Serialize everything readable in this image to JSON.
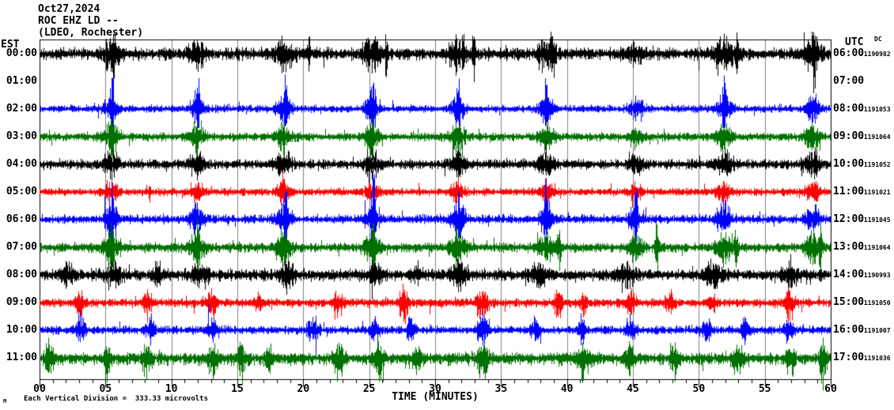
{
  "header": {
    "date": "Oct27,2024",
    "station": "ROC EHZ LD --",
    "location": "(LDEO, Rochester)"
  },
  "left_axis": {
    "label": "EST"
  },
  "right_axis": {
    "label": "UTC",
    "dc_label": "DC"
  },
  "x_axis": {
    "title": "TIME (MINUTES)",
    "tick_labels": [
      "00",
      "05",
      "10",
      "15",
      "20",
      "25",
      "30",
      "35",
      "40",
      "45",
      "50",
      "55",
      "60"
    ],
    "minor_tick_minutes": 1,
    "major_tick_minutes": 5
  },
  "footer": {
    "watermark": "M",
    "note": "Each Vertical Division =  333.33 microvolts"
  },
  "colors": {
    "black": "#000000",
    "red": "#ff0000",
    "blue": "#0000ff",
    "green": "#007000",
    "grid": "#808080",
    "frame": "#000000",
    "background": "#ffffff"
  },
  "chart_data": {
    "type": "line",
    "subtype": "helicorder-seismogram",
    "title": "ROC EHZ LD -- (LDEO, Rochester) Oct27,2024",
    "x_range_minutes": [
      0,
      60
    ],
    "minutes_per_line": 60,
    "vertical_division_microvolts": 333.33,
    "rows": [
      {
        "est": "00:00",
        "utc": "06:00",
        "dc": "-1190982",
        "color": "black",
        "gap": false,
        "seed": 11,
        "base": 6,
        "spike": 2.2,
        "max_up": 56,
        "max_dn": 50,
        "dn_bias": 1.1,
        "up_bias": 1,
        "bursts": [
          [
            5.4,
            22,
            0.7
          ],
          [
            11.9,
            18,
            0.6
          ],
          [
            18.5,
            20,
            0.7
          ],
          [
            25.2,
            20,
            0.7
          ],
          [
            31.7,
            20,
            0.7
          ],
          [
            38.4,
            20,
            0.7
          ],
          [
            45.2,
            16,
            0.6
          ],
          [
            51.9,
            20,
            0.7
          ],
          [
            58.6,
            22,
            0.7
          ],
          [
            5.6,
            40,
            0.12
          ],
          [
            20.4,
            42,
            0.1
          ],
          [
            26.3,
            40,
            0.1
          ],
          [
            32.9,
            40,
            0.1
          ],
          [
            38.9,
            38,
            0.1
          ],
          [
            52.9,
            40,
            0.1
          ],
          [
            58.7,
            45,
            0.12
          ]
        ]
      },
      {
        "est": "01:00",
        "utc": "07:00",
        "dc": "",
        "color": "red",
        "gap": true,
        "seed": 1,
        "base": 0,
        "spike": 1,
        "max_up": 0,
        "max_dn": 0,
        "dn_bias": 1,
        "up_bias": 1,
        "bursts": []
      },
      {
        "est": "02:00",
        "utc": "08:00",
        "dc": "-1191053",
        "color": "blue",
        "gap": false,
        "seed": 22,
        "base": 3.5,
        "spike": 2.2,
        "max_up": 44,
        "max_dn": 24,
        "dn_bias": 1,
        "up_bias": 1.2,
        "bursts": [
          [
            5.4,
            20,
            0.5
          ],
          [
            11.9,
            20,
            0.5
          ],
          [
            18.5,
            20,
            0.5
          ],
          [
            25.2,
            20,
            0.5
          ],
          [
            31.7,
            20,
            0.5
          ],
          [
            38.4,
            20,
            0.5
          ],
          [
            45.2,
            16,
            0.5
          ],
          [
            51.9,
            20,
            0.5
          ],
          [
            58.6,
            20,
            0.5
          ],
          [
            5.5,
            38,
            0.1
          ],
          [
            12.0,
            30,
            0.1
          ],
          [
            18.6,
            34,
            0.1
          ],
          [
            25.3,
            34,
            0.1
          ],
          [
            31.8,
            30,
            0.1
          ],
          [
            38.4,
            30,
            0.1
          ],
          [
            51.9,
            30,
            0.1
          ]
        ]
      },
      {
        "est": "03:00",
        "utc": "09:00",
        "dc": "-1191064",
        "color": "green",
        "gap": false,
        "seed": 33,
        "base": 4,
        "spike": 2,
        "max_up": 26,
        "max_dn": 34,
        "dn_bias": 1.15,
        "up_bias": 1,
        "bursts": [
          [
            5.4,
            18,
            0.55
          ],
          [
            11.9,
            18,
            0.55
          ],
          [
            18.5,
            18,
            0.55
          ],
          [
            25.2,
            18,
            0.55
          ],
          [
            31.7,
            18,
            0.55
          ],
          [
            38.4,
            18,
            0.55
          ],
          [
            45.2,
            14,
            0.5
          ],
          [
            51.9,
            18,
            0.55
          ],
          [
            58.6,
            18,
            0.55
          ],
          [
            5.4,
            28,
            0.12
          ],
          [
            11.9,
            26,
            0.1
          ],
          [
            18.5,
            26,
            0.1
          ],
          [
            25.2,
            28,
            0.12
          ]
        ]
      },
      {
        "est": "04:00",
        "utc": "10:00",
        "dc": "-1191052",
        "color": "black",
        "gap": false,
        "seed": 44,
        "base": 5,
        "spike": 2,
        "max_up": 30,
        "max_dn": 28,
        "dn_bias": 1,
        "up_bias": 1,
        "bursts": [
          [
            5.4,
            17,
            0.6
          ],
          [
            11.9,
            17,
            0.6
          ],
          [
            18.5,
            17,
            0.6
          ],
          [
            25.2,
            17,
            0.6
          ],
          [
            31.7,
            17,
            0.6
          ],
          [
            38.4,
            17,
            0.6
          ],
          [
            45.2,
            14,
            0.5
          ],
          [
            51.9,
            17,
            0.6
          ],
          [
            58.6,
            17,
            0.6
          ]
        ]
      },
      {
        "est": "05:00",
        "utc": "11:00",
        "dc": "-1191021",
        "color": "red",
        "gap": false,
        "seed": 55,
        "base": 4,
        "spike": 2,
        "max_up": 26,
        "max_dn": 26,
        "dn_bias": 1,
        "up_bias": 1,
        "bursts": [
          [
            5.4,
            15,
            0.5
          ],
          [
            11.9,
            15,
            0.5
          ],
          [
            18.5,
            15,
            0.5
          ],
          [
            25.2,
            15,
            0.5
          ],
          [
            31.7,
            15,
            0.5
          ],
          [
            38.4,
            15,
            0.5
          ],
          [
            45.2,
            12,
            0.5
          ],
          [
            51.9,
            15,
            0.5
          ],
          [
            58.6,
            15,
            0.5
          ],
          [
            8.3,
            24,
            0.07
          ]
        ]
      },
      {
        "est": "06:00",
        "utc": "12:00",
        "dc": "-1191045",
        "color": "blue",
        "gap": false,
        "seed": 66,
        "base": 4,
        "spike": 2.2,
        "max_up": 85,
        "max_dn": 28,
        "dn_bias": 1,
        "up_bias": 1.3,
        "bursts": [
          [
            5.4,
            20,
            0.5
          ],
          [
            11.9,
            20,
            0.5
          ],
          [
            18.5,
            20,
            0.5
          ],
          [
            25.2,
            20,
            0.5
          ],
          [
            31.7,
            20,
            0.5
          ],
          [
            38.4,
            20,
            0.5
          ],
          [
            45.2,
            18,
            0.5
          ],
          [
            51.9,
            20,
            0.5
          ],
          [
            58.6,
            20,
            0.5
          ],
          [
            5.5,
            35,
            0.1
          ],
          [
            18.6,
            55,
            0.1
          ],
          [
            25.3,
            60,
            0.1
          ],
          [
            31.8,
            55,
            0.1
          ],
          [
            38.4,
            50,
            0.1
          ],
          [
            45.2,
            40,
            0.1
          ]
        ]
      },
      {
        "est": "07:00",
        "utc": "13:00",
        "dc": "-1191064",
        "color": "green",
        "gap": false,
        "seed": 77,
        "base": 4.5,
        "spike": 2,
        "max_up": 38,
        "max_dn": 44,
        "dn_bias": 1.2,
        "up_bias": 1,
        "bursts": [
          [
            5.4,
            20,
            0.6
          ],
          [
            11.9,
            20,
            0.6
          ],
          [
            18.5,
            20,
            0.6
          ],
          [
            25.2,
            20,
            0.6
          ],
          [
            31.7,
            20,
            0.6
          ],
          [
            38.4,
            20,
            0.6
          ],
          [
            45.2,
            16,
            0.5
          ],
          [
            51.9,
            20,
            0.6
          ],
          [
            58.6,
            20,
            0.6
          ],
          [
            5.5,
            40,
            0.12
          ],
          [
            12.0,
            40,
            0.12
          ],
          [
            18.6,
            42,
            0.12
          ],
          [
            25.3,
            42,
            0.12
          ],
          [
            31.6,
            38,
            0.12
          ],
          [
            39.4,
            40,
            0.15
          ],
          [
            46.8,
            36,
            0.15
          ],
          [
            52.8,
            36,
            0.15
          ],
          [
            59.2,
            40,
            0.12
          ]
        ]
      },
      {
        "est": "08:00",
        "utc": "14:00",
        "dc": "-1190993",
        "color": "black",
        "gap": false,
        "seed": 88,
        "base": 6,
        "spike": 2,
        "max_up": 30,
        "max_dn": 30,
        "dn_bias": 1,
        "up_bias": 1,
        "bursts": [
          [
            2.2,
            16,
            0.5
          ],
          [
            5.6,
            18,
            0.6
          ],
          [
            9.0,
            14,
            0.4
          ],
          [
            12.1,
            18,
            0.6
          ],
          [
            18.7,
            16,
            0.6
          ],
          [
            25.4,
            16,
            0.6
          ],
          [
            28.6,
            12,
            0.4
          ],
          [
            31.8,
            18,
            0.6
          ],
          [
            37.8,
            18,
            0.6
          ],
          [
            44.4,
            18,
            0.6
          ],
          [
            51.0,
            18,
            0.6
          ],
          [
            57.0,
            16,
            0.6
          ]
        ]
      },
      {
        "est": "09:00",
        "utc": "15:00",
        "dc": "-1191050",
        "color": "red",
        "gap": false,
        "seed": 99,
        "base": 4,
        "spike": 2.5,
        "max_up": 30,
        "max_dn": 42,
        "dn_bias": 1.25,
        "up_bias": 1,
        "bursts": [
          [
            3.0,
            20,
            0.3
          ],
          [
            8.2,
            18,
            0.3
          ],
          [
            13.0,
            20,
            0.35
          ],
          [
            16.6,
            14,
            0.25
          ],
          [
            22.6,
            20,
            0.35
          ],
          [
            27.6,
            20,
            0.35
          ],
          [
            33.5,
            22,
            0.4
          ],
          [
            39.3,
            18,
            0.3
          ],
          [
            41.2,
            16,
            0.25
          ],
          [
            44.8,
            18,
            0.3
          ],
          [
            47.8,
            18,
            0.3
          ],
          [
            51.0,
            16,
            0.3
          ],
          [
            56.9,
            20,
            0.35
          ]
        ]
      },
      {
        "est": "10:00",
        "utc": "16:00",
        "dc": "-1191007",
        "color": "blue",
        "gap": false,
        "seed": 110,
        "base": 4,
        "spike": 2.2,
        "max_up": 36,
        "max_dn": 34,
        "dn_bias": 1,
        "up_bias": 1.1,
        "bursts": [
          [
            3.1,
            20,
            0.35
          ],
          [
            8.4,
            20,
            0.35
          ],
          [
            13.1,
            20,
            0.35
          ],
          [
            20.7,
            22,
            0.4
          ],
          [
            25.4,
            18,
            0.35
          ],
          [
            28.1,
            16,
            0.3
          ],
          [
            33.6,
            22,
            0.4
          ],
          [
            37.6,
            18,
            0.3
          ],
          [
            41.1,
            18,
            0.3
          ],
          [
            44.8,
            18,
            0.35
          ],
          [
            50.5,
            18,
            0.35
          ],
          [
            53.5,
            16,
            0.3
          ],
          [
            56.8,
            20,
            0.35
          ]
        ]
      },
      {
        "est": "11:00",
        "utc": "17:00",
        "dc": "-1191036",
        "color": "green",
        "gap": false,
        "seed": 121,
        "base": 5,
        "spike": 2.3,
        "max_up": 28,
        "max_dn": 58,
        "dn_bias": 1.5,
        "up_bias": 1,
        "bursts": [
          [
            0.7,
            20,
            0.35
          ],
          [
            5.1,
            16,
            0.3
          ],
          [
            8.1,
            18,
            0.35
          ],
          [
            13.1,
            18,
            0.35
          ],
          [
            15.3,
            20,
            0.3
          ],
          [
            17.4,
            18,
            0.3
          ],
          [
            22.7,
            20,
            0.4
          ],
          [
            25.7,
            18,
            0.35
          ],
          [
            28.6,
            16,
            0.3
          ],
          [
            33.6,
            20,
            0.4
          ],
          [
            41.2,
            20,
            0.4
          ],
          [
            44.7,
            18,
            0.35
          ],
          [
            48.1,
            16,
            0.3
          ],
          [
            53.0,
            18,
            0.4
          ],
          [
            56.9,
            18,
            0.35
          ],
          [
            59.4,
            20,
            0.3
          ]
        ]
      }
    ]
  }
}
